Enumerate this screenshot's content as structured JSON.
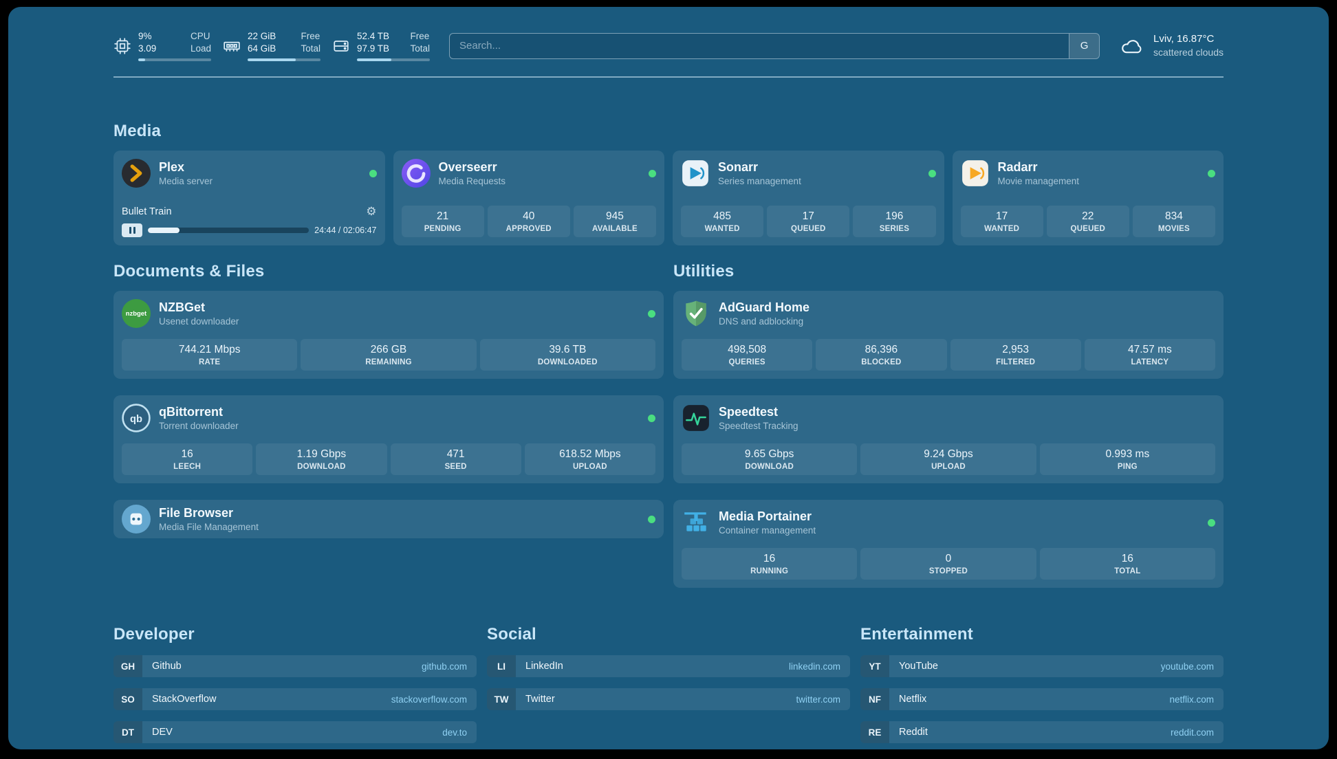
{
  "theme": {
    "page_bg": "#1a5a7e",
    "accent": "#8fd0f2",
    "status_online": "#4ade80"
  },
  "topbar": {
    "cpu": {
      "icon": "cpu-icon",
      "value_top": "9%",
      "value_bottom": "3.09",
      "label_top": "CPU",
      "label_bottom": "Load",
      "progress_pct": 9
    },
    "memory": {
      "icon": "memory-icon",
      "value_top": "22 GiB",
      "value_bottom": "64 GiB",
      "label_top": "Free",
      "label_bottom": "Total",
      "progress_pct": 66
    },
    "disk": {
      "icon": "disk-icon",
      "value_top": "52.4 TB",
      "value_bottom": "97.9 TB",
      "label_top": "Free",
      "label_bottom": "Total",
      "progress_pct": 47
    },
    "search": {
      "placeholder": "Search...",
      "provider_label": "G"
    },
    "weather": {
      "icon": "cloud-icon",
      "location": "Lviv, 16.87°C",
      "condition": "scattered clouds"
    }
  },
  "media": {
    "title": "Media",
    "plex": {
      "name": "Plex",
      "subtitle": "Media server",
      "status": "online",
      "now_playing": {
        "title": "Bullet Train",
        "time": "24:44 / 02:06:47",
        "progress_pct": 19.5,
        "state": "paused"
      }
    },
    "overseerr": {
      "name": "Overseerr",
      "subtitle": "Media Requests",
      "status": "online",
      "stats": [
        {
          "value": "21",
          "label": "PENDING"
        },
        {
          "value": "40",
          "label": "APPROVED"
        },
        {
          "value": "945",
          "label": "AVAILABLE"
        }
      ]
    },
    "sonarr": {
      "name": "Sonarr",
      "subtitle": "Series management",
      "status": "online",
      "stats": [
        {
          "value": "485",
          "label": "WANTED"
        },
        {
          "value": "17",
          "label": "QUEUED"
        },
        {
          "value": "196",
          "label": "SERIES"
        }
      ]
    },
    "radarr": {
      "name": "Radarr",
      "subtitle": "Movie management",
      "status": "online",
      "stats": [
        {
          "value": "17",
          "label": "WANTED"
        },
        {
          "value": "22",
          "label": "QUEUED"
        },
        {
          "value": "834",
          "label": "MOVIES"
        }
      ]
    }
  },
  "documents": {
    "title": "Documents & Files",
    "nzbget": {
      "name": "NZBGet",
      "subtitle": "Usenet downloader",
      "status": "online",
      "stats": [
        {
          "value": "744.21 Mbps",
          "label": "RATE"
        },
        {
          "value": "266 GB",
          "label": "REMAINING"
        },
        {
          "value": "39.6 TB",
          "label": "DOWNLOADED"
        }
      ]
    },
    "qbittorrent": {
      "name": "qBittorrent",
      "subtitle": "Torrent downloader",
      "status": "online",
      "stats": [
        {
          "value": "16",
          "label": "LEECH"
        },
        {
          "value": "1.19 Gbps",
          "label": "DOWNLOAD"
        },
        {
          "value": "471",
          "label": "SEED"
        },
        {
          "value": "618.52 Mbps",
          "label": "UPLOAD"
        }
      ]
    },
    "filebrowser": {
      "name": "File Browser",
      "subtitle": "Media File Management",
      "status": "online"
    }
  },
  "utilities": {
    "title": "Utilities",
    "adguard": {
      "name": "AdGuard Home",
      "subtitle": "DNS and adblocking",
      "stats": [
        {
          "value": "498,508",
          "label": "QUERIES"
        },
        {
          "value": "86,396",
          "label": "BLOCKED"
        },
        {
          "value": "2,953",
          "label": "FILTERED"
        },
        {
          "value": "47.57 ms",
          "label": "LATENCY"
        }
      ]
    },
    "speedtest": {
      "name": "Speedtest",
      "subtitle": "Speedtest Tracking",
      "stats": [
        {
          "value": "9.65 Gbps",
          "label": "DOWNLOAD"
        },
        {
          "value": "9.24 Gbps",
          "label": "UPLOAD"
        },
        {
          "value": "0.993 ms",
          "label": "PING"
        }
      ]
    },
    "portainer": {
      "name": "Media Portainer",
      "subtitle": "Container management",
      "status": "online",
      "stats": [
        {
          "value": "16",
          "label": "RUNNING"
        },
        {
          "value": "0",
          "label": "STOPPED"
        },
        {
          "value": "16",
          "label": "TOTAL"
        }
      ]
    }
  },
  "bookmarks": {
    "developer": {
      "title": "Developer",
      "items": [
        {
          "abbr": "GH",
          "name": "Github",
          "url": "github.com"
        },
        {
          "abbr": "SO",
          "name": "StackOverflow",
          "url": "stackoverflow.com"
        },
        {
          "abbr": "DT",
          "name": "DEV",
          "url": "dev.to"
        }
      ]
    },
    "social": {
      "title": "Social",
      "items": [
        {
          "abbr": "LI",
          "name": "LinkedIn",
          "url": "linkedin.com"
        },
        {
          "abbr": "TW",
          "name": "Twitter",
          "url": "twitter.com"
        }
      ]
    },
    "entertainment": {
      "title": "Entertainment",
      "items": [
        {
          "abbr": "YT",
          "name": "YouTube",
          "url": "youtube.com"
        },
        {
          "abbr": "NF",
          "name": "Netflix",
          "url": "netflix.com"
        },
        {
          "abbr": "RE",
          "name": "Reddit",
          "url": "reddit.com"
        }
      ]
    }
  }
}
